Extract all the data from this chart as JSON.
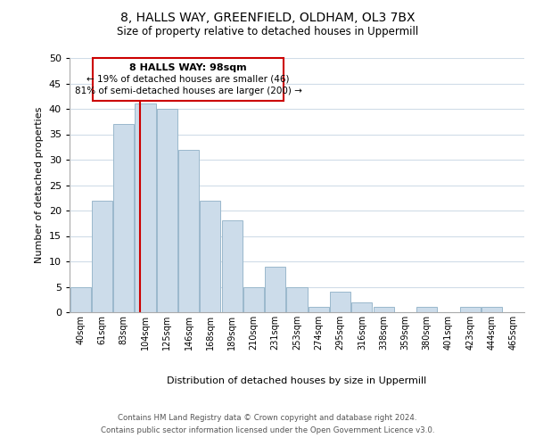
{
  "title": "8, HALLS WAY, GREENFIELD, OLDHAM, OL3 7BX",
  "subtitle": "Size of property relative to detached houses in Uppermill",
  "xlabel": "Distribution of detached houses by size in Uppermill",
  "ylabel": "Number of detached properties",
  "bin_labels": [
    "40sqm",
    "61sqm",
    "83sqm",
    "104sqm",
    "125sqm",
    "146sqm",
    "168sqm",
    "189sqm",
    "210sqm",
    "231sqm",
    "253sqm",
    "274sqm",
    "295sqm",
    "316sqm",
    "338sqm",
    "359sqm",
    "380sqm",
    "401sqm",
    "423sqm",
    "444sqm",
    "465sqm"
  ],
  "bar_values": [
    5,
    22,
    37,
    41,
    40,
    32,
    22,
    18,
    5,
    9,
    5,
    1,
    4,
    2,
    1,
    0,
    1,
    0,
    1,
    1,
    0
  ],
  "bar_color": "#ccdcea",
  "bar_edge_color": "#9ab8cc",
  "marker_line_color": "#cc0000",
  "annotation_box_edge": "#cc0000",
  "annotation_box_color": "#ffffff",
  "marker_label": "8 HALLS WAY: 98sqm",
  "annotation_line1": "← 19% of detached houses are smaller (46)",
  "annotation_line2": "81% of semi-detached houses are larger (200) →",
  "ylim": [
    0,
    50
  ],
  "yticks": [
    0,
    5,
    10,
    15,
    20,
    25,
    30,
    35,
    40,
    45,
    50
  ],
  "footer_line1": "Contains HM Land Registry data © Crown copyright and database right 2024.",
  "footer_line2": "Contains public sector information licensed under the Open Government Licence v3.0.",
  "background_color": "#ffffff",
  "grid_color": "#d0dce8"
}
